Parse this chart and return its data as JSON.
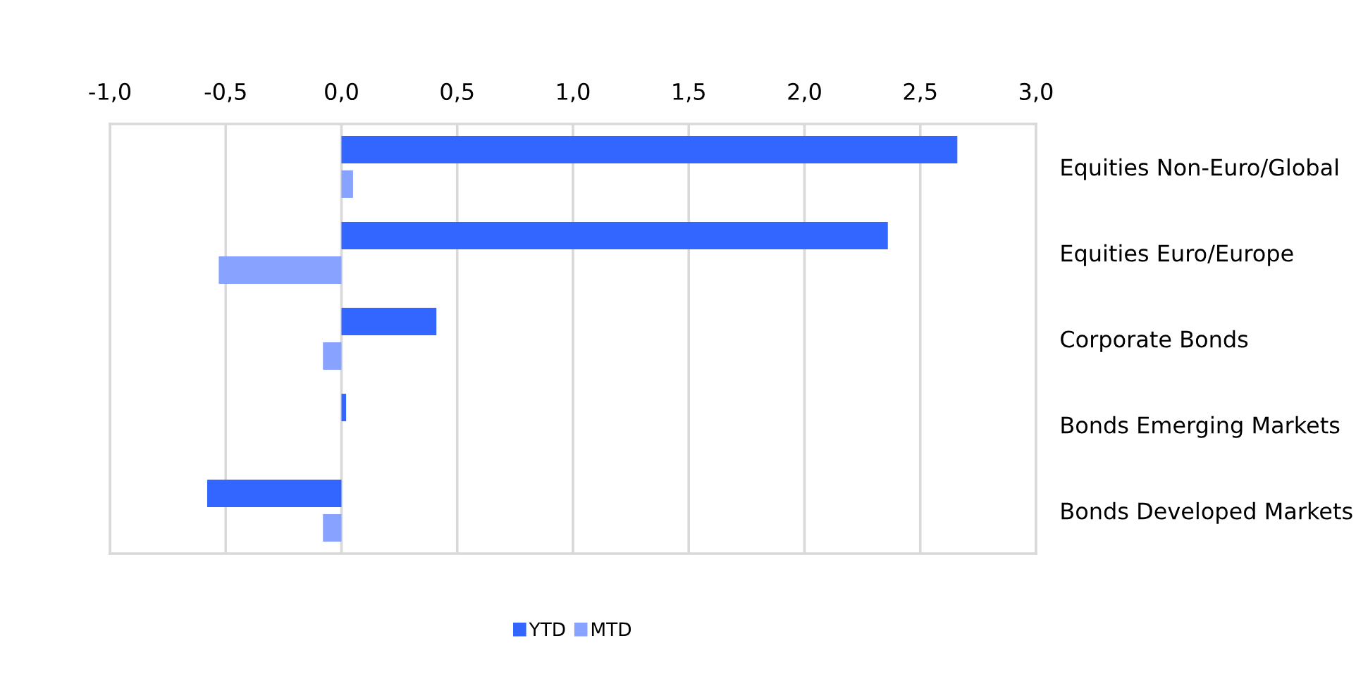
{
  "chart_data": {
    "type": "bar",
    "orientation": "horizontal",
    "categories": [
      "Equities Non-Euro/Global",
      "Equities Euro/Europe",
      "Corporate Bonds",
      "Bonds Emerging Markets",
      "Bonds Developed Markets"
    ],
    "series": [
      {
        "name": "YTD",
        "color": "#3366ff",
        "values": [
          2.66,
          2.36,
          0.41,
          0.02,
          -0.58
        ]
      },
      {
        "name": "MTD",
        "color": "#88a3ff",
        "values": [
          0.05,
          -0.53,
          -0.08,
          null,
          -0.08
        ]
      }
    ],
    "xlim": [
      -1.0,
      3.0
    ],
    "xticks": [
      {
        "value": -1.0,
        "label": "-1,0"
      },
      {
        "value": -0.5,
        "label": "-0,5"
      },
      {
        "value": 0.0,
        "label": "0,0"
      },
      {
        "value": 0.5,
        "label": "0,5"
      },
      {
        "value": 1.0,
        "label": "1,0"
      },
      {
        "value": 1.5,
        "label": "1,5"
      },
      {
        "value": 2.0,
        "label": "2,0"
      },
      {
        "value": 2.5,
        "label": "2,5"
      },
      {
        "value": 3.0,
        "label": "3,0"
      }
    ],
    "grid": "x",
    "legend": "bottom"
  }
}
